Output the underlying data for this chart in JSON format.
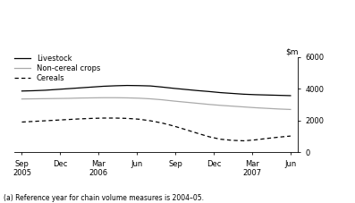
{
  "livestock": [
    3850,
    3870,
    3900,
    3950,
    4000,
    4050,
    4100,
    4150,
    4180,
    4200,
    4190,
    4170,
    4100,
    4020,
    3950,
    3880,
    3820,
    3750,
    3700,
    3650,
    3620,
    3600,
    3580,
    3560
  ],
  "non_cereal": [
    3350,
    3360,
    3370,
    3380,
    3390,
    3410,
    3420,
    3430,
    3430,
    3420,
    3400,
    3360,
    3300,
    3220,
    3150,
    3080,
    3010,
    2950,
    2900,
    2850,
    2800,
    2760,
    2720,
    2690
  ],
  "cereals": [
    1900,
    1940,
    1980,
    2020,
    2060,
    2100,
    2130,
    2150,
    2150,
    2130,
    2080,
    1980,
    1840,
    1650,
    1430,
    1200,
    980,
    820,
    750,
    720,
    780,
    870,
    950,
    1020
  ],
  "x_tick_labels": [
    "Sep\n2005",
    "Dec",
    "Mar\n2006",
    "Jun",
    "Sep",
    "Dec",
    "Mar\n2007",
    "Jun"
  ],
  "ylim": [
    0,
    6000
  ],
  "yticks": [
    0,
    2000,
    4000,
    6000
  ],
  "livestock_color": "#000000",
  "non_cereal_color": "#aaaaaa",
  "cereals_color": "#000000",
  "background_color": "#ffffff",
  "n_points": 24,
  "footnote": "(a) Reference year for chain volume measures is 2004–05."
}
